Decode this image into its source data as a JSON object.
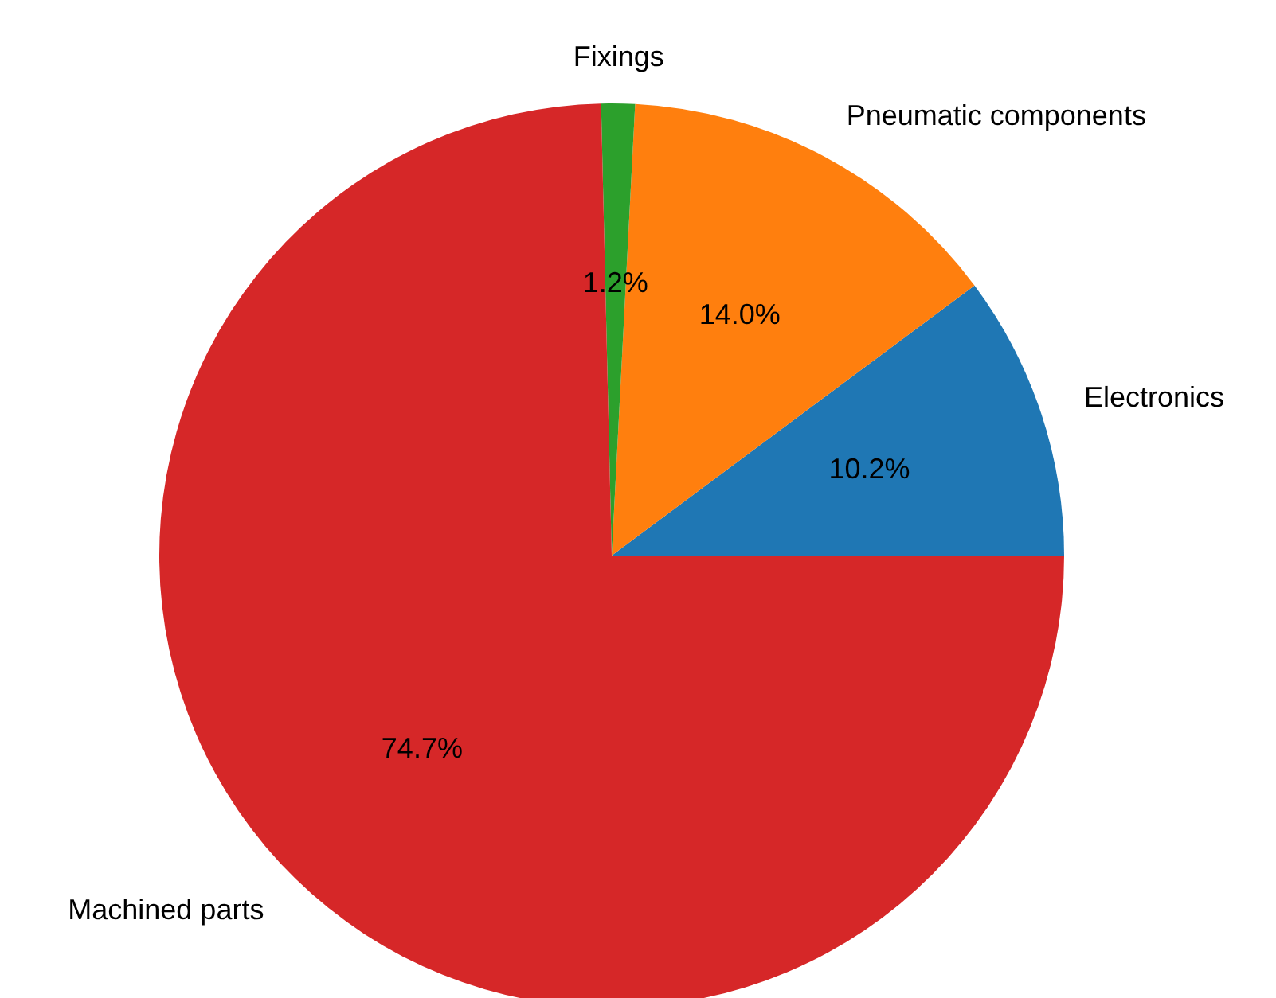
{
  "chart_data": {
    "type": "pie",
    "categories": [
      "Electronics",
      "Pneumatic components",
      "Fixings",
      "Machined parts"
    ],
    "values": [
      10.2,
      14.0,
      1.2,
      74.7
    ],
    "colors": [
      "#1f77b4",
      "#ff7f0e",
      "#2ca02c",
      "#d62728"
    ],
    "value_labels": [
      "10.2%",
      "14.0%",
      "1.2%",
      "74.7%"
    ],
    "legend": false
  }
}
